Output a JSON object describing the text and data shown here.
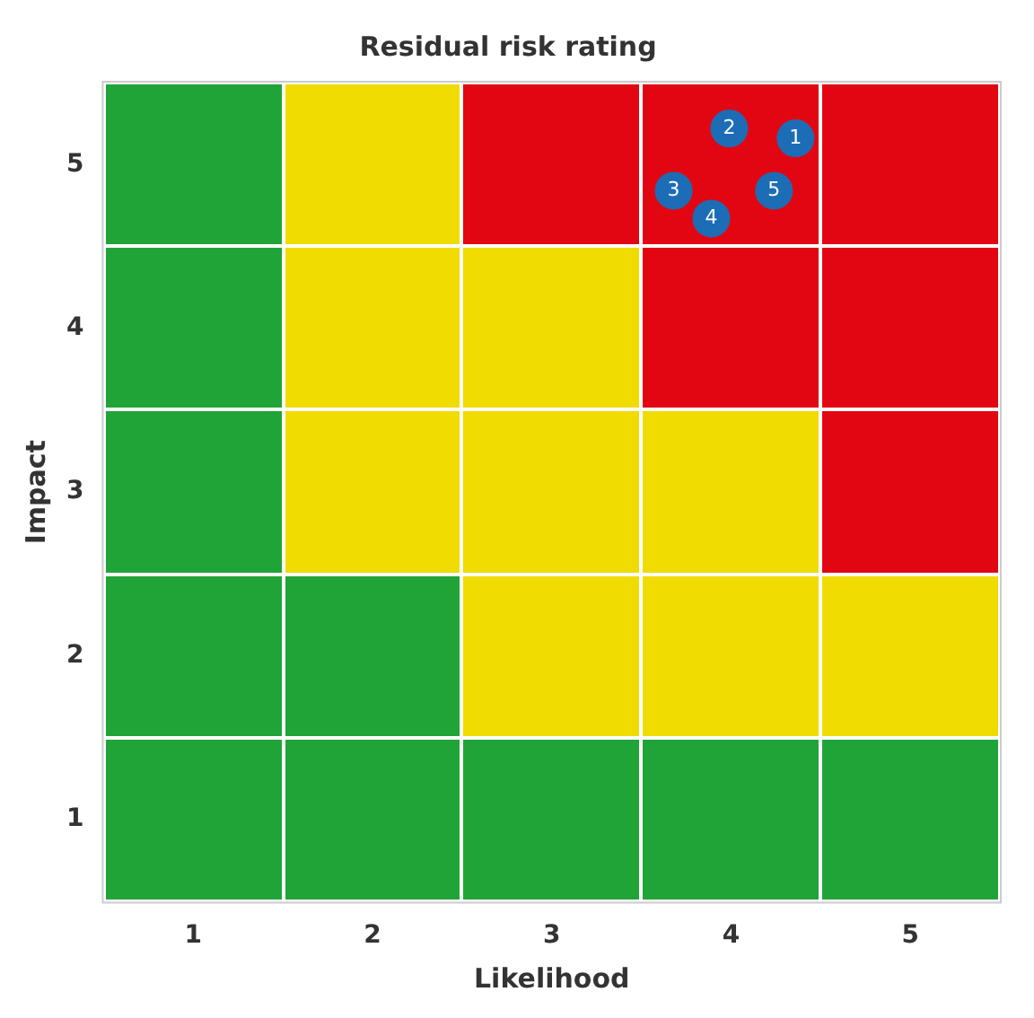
{
  "chart_data": {
    "type": "scatter",
    "title": "Residual risk rating",
    "xlabel": "Likelihood",
    "ylabel": "Impact",
    "xlim": [
      0.5,
      5.5
    ],
    "xticks": [
      1,
      2,
      3,
      4,
      5
    ],
    "ylim": [
      0.5,
      5.5
    ],
    "yticks": [
      1,
      2,
      3,
      4,
      5
    ],
    "series": [
      {
        "type": "scatter",
        "color": "#1c6db5",
        "x": [
          4.36,
          3.99,
          3.68,
          3.89,
          4.24
        ],
        "values": [
          5.16,
          5.22,
          4.84,
          4.67,
          4.84
        ]
      }
    ],
    "annotations": [
      {
        "text": "1",
        "x": 4.36,
        "y": 5.16
      },
      {
        "text": "2",
        "x": 3.99,
        "y": 5.22
      },
      {
        "text": "3",
        "x": 3.68,
        "y": 4.84
      },
      {
        "text": "4",
        "x": 3.89,
        "y": 4.67
      },
      {
        "text": "5",
        "x": 4.24,
        "y": 4.84
      }
    ]
  }
}
